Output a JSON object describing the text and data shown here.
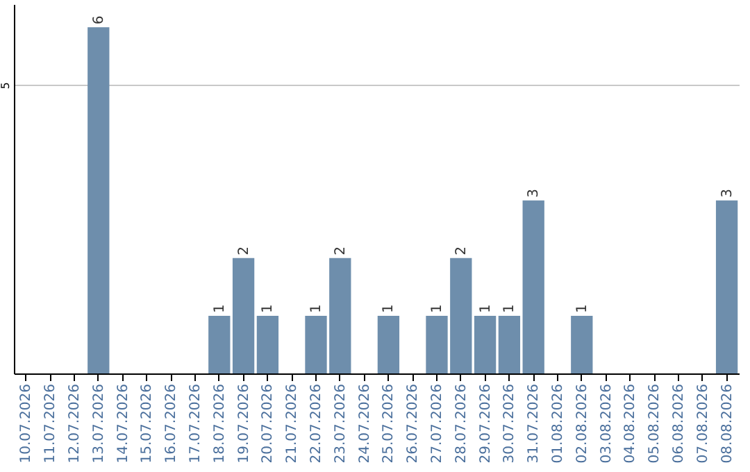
{
  "chart_data": {
    "type": "bar",
    "categories": [
      "10.07.2026",
      "11.07.2026",
      "12.07.2026",
      "13.07.2026",
      "14.07.2026",
      "15.07.2026",
      "16.07.2026",
      "17.07.2026",
      "18.07.2026",
      "19.07.2026",
      "20.07.2026",
      "21.07.2026",
      "22.07.2026",
      "23.07.2026",
      "24.07.2026",
      "25.07.2026",
      "26.07.2026",
      "27.07.2026",
      "28.07.2026",
      "29.07.2026",
      "30.07.2026",
      "31.07.2026",
      "01.08.2026",
      "02.08.2026",
      "03.08.2026",
      "04.08.2026",
      "05.08.2026",
      "06.08.2026",
      "07.08.2026",
      "08.08.2026"
    ],
    "values": [
      0,
      0,
      0,
      6,
      0,
      0,
      0,
      0,
      1,
      2,
      1,
      0,
      1,
      2,
      0,
      1,
      0,
      1,
      2,
      1,
      1,
      3,
      0,
      1,
      0,
      0,
      0,
      0,
      0,
      3
    ],
    "value_labels": [
      null,
      null,
      null,
      "6",
      null,
      null,
      null,
      null,
      "1",
      "2",
      "1",
      null,
      "1",
      "2",
      null,
      "1",
      null,
      "1",
      "2",
      "1",
      "1",
      "3",
      null,
      "1",
      null,
      null,
      null,
      null,
      null,
      "3"
    ],
    "color": "#6e8eac",
    "ylim": [
      0,
      6.4
    ],
    "yticks": [
      5
    ],
    "grid": "y"
  }
}
